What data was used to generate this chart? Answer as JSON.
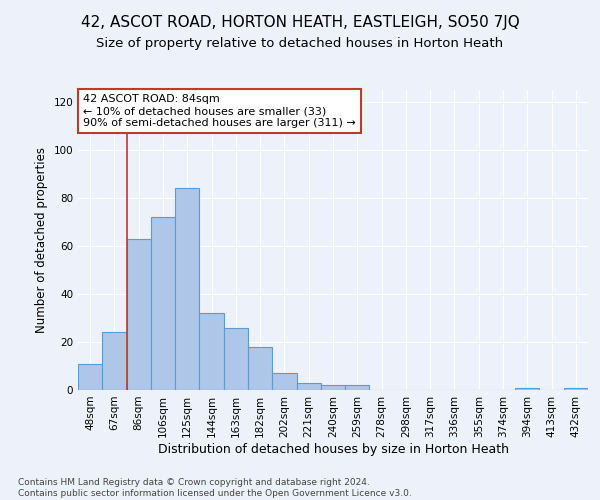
{
  "title": "42, ASCOT ROAD, HORTON HEATH, EASTLEIGH, SO50 7JQ",
  "subtitle": "Size of property relative to detached houses in Horton Heath",
  "xlabel": "Distribution of detached houses by size in Horton Heath",
  "ylabel": "Number of detached properties",
  "categories": [
    "48sqm",
    "67sqm",
    "86sqm",
    "106sqm",
    "125sqm",
    "144sqm",
    "163sqm",
    "182sqm",
    "202sqm",
    "221sqm",
    "240sqm",
    "259sqm",
    "278sqm",
    "298sqm",
    "317sqm",
    "336sqm",
    "355sqm",
    "374sqm",
    "394sqm",
    "413sqm",
    "432sqm"
  ],
  "values": [
    11,
    24,
    63,
    72,
    84,
    32,
    26,
    18,
    7,
    3,
    2,
    2,
    0,
    0,
    0,
    0,
    0,
    0,
    1,
    0,
    1
  ],
  "bar_color": "#aec6e8",
  "bar_edgecolor": "#5b9bd5",
  "bar_linewidth": 0.8,
  "vline_x": 1.5,
  "vline_color": "#c0392b",
  "annotation_text": "42 ASCOT ROAD: 84sqm\n← 10% of detached houses are smaller (33)\n90% of semi-detached houses are larger (311) →",
  "annotation_box_color": "white",
  "annotation_box_edgecolor": "#c0392b",
  "ylim": [
    0,
    125
  ],
  "yticks": [
    0,
    20,
    40,
    60,
    80,
    100,
    120
  ],
  "title_fontsize": 11,
  "subtitle_fontsize": 9.5,
  "xlabel_fontsize": 9,
  "ylabel_fontsize": 8.5,
  "tick_fontsize": 7.5,
  "footer_text": "Contains HM Land Registry data © Crown copyright and database right 2024.\nContains public sector information licensed under the Open Government Licence v3.0.",
  "background_color": "#edf1f9",
  "plot_background_color": "#edf1f9",
  "grid_color": "#ffffff"
}
